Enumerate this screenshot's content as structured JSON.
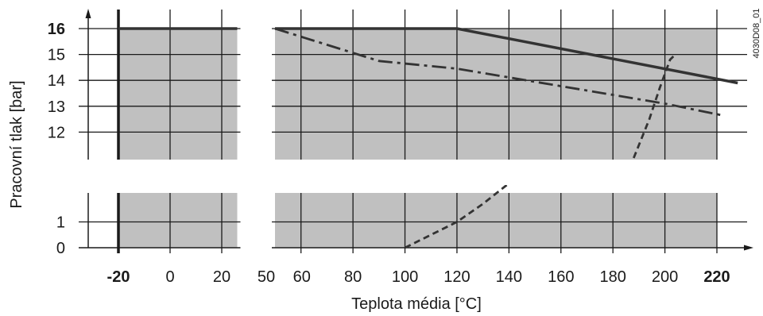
{
  "chart_data": {
    "type": "area",
    "title": "",
    "xlabel": "Teplota média [°C]",
    "ylabel": "Pracovní tlak [bar]",
    "reference_code": "4030D08_01",
    "x_ticks": [
      {
        "value": -20,
        "label": "-20",
        "bold": true
      },
      {
        "value": 0,
        "label": "0",
        "bold": false
      },
      {
        "value": 20,
        "label": "20",
        "bold": false
      },
      {
        "value": 50,
        "label": "50",
        "bold": false
      },
      {
        "value": 60,
        "label": "60",
        "bold": false
      },
      {
        "value": 80,
        "label": "80",
        "bold": false
      },
      {
        "value": 100,
        "label": "100",
        "bold": false
      },
      {
        "value": 120,
        "label": "120",
        "bold": false
      },
      {
        "value": 140,
        "label": "140",
        "bold": false
      },
      {
        "value": 160,
        "label": "160",
        "bold": false
      },
      {
        "value": 180,
        "label": "180",
        "bold": false
      },
      {
        "value": 200,
        "label": "200",
        "bold": false
      },
      {
        "value": 220,
        "label": "220",
        "bold": true
      }
    ],
    "y_ticks_upper": [
      {
        "value": 16,
        "label": "16",
        "bold": true
      },
      {
        "value": 15,
        "label": "15",
        "bold": false
      },
      {
        "value": 14,
        "label": "14",
        "bold": false
      },
      {
        "value": 13,
        "label": "13",
        "bold": false
      },
      {
        "value": 12,
        "label": "12",
        "bold": false
      }
    ],
    "y_ticks_lower": [
      {
        "value": 1,
        "label": "1",
        "bold": false
      },
      {
        "value": 0,
        "label": "0",
        "bold": false
      }
    ],
    "vertical_grid": [
      -20,
      0,
      20,
      60,
      80,
      100,
      120,
      140,
      160,
      180,
      200,
      220
    ],
    "xlim": [
      -33,
      232
    ],
    "ylim_upper": [
      11,
      16.9
    ],
    "ylim_lower": [
      0,
      2.2
    ],
    "regions": {
      "left": {
        "x": [
          -20,
          26
        ]
      },
      "right": {
        "x": [
          50,
          220
        ]
      }
    },
    "grid": true,
    "series": [
      {
        "style": "solid-thick",
        "segment": "left",
        "x": [
          -20,
          26
        ],
        "y": [
          16,
          16
        ]
      },
      {
        "style": "solid-thick",
        "segment": "right",
        "x": [
          50,
          120,
          228
        ],
        "y": [
          16,
          16,
          13.9
        ]
      },
      {
        "style": "dash-dot",
        "segment": "upper",
        "x": [
          50,
          90,
          120,
          200,
          222
        ],
        "y": [
          16,
          14.75,
          14.45,
          13.1,
          12.65
        ]
      },
      {
        "style": "dashed",
        "segment": "upper",
        "x": [
          188,
          194,
          198,
          202,
          204
        ],
        "y": [
          11,
          12.5,
          13.7,
          14.8,
          15
        ]
      },
      {
        "style": "dashed",
        "segment": "lower",
        "x": [
          100,
          110,
          120,
          130,
          140
        ],
        "y": [
          0,
          0.5,
          1,
          1.7,
          2.5
        ]
      }
    ]
  }
}
